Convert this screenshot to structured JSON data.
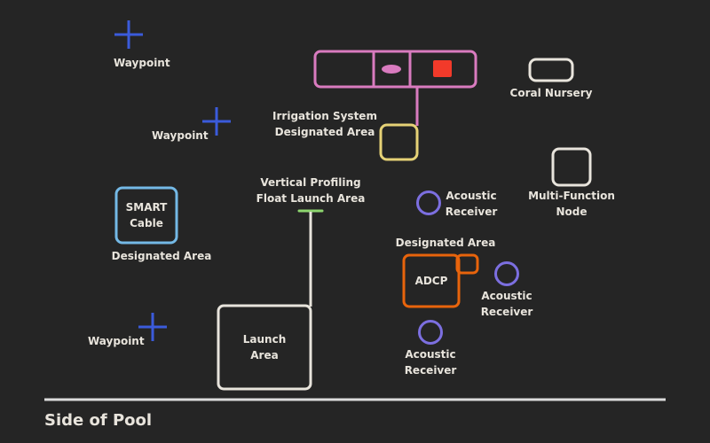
{
  "colors": {
    "background": "#252525",
    "text": "#e8e4dc",
    "waypoint": "#3b5bdb",
    "receiver": "#7c6fe0",
    "irrigation": "#d97bbf",
    "irrigation_dot": "#f23a2a",
    "irrigation_target": "#e6d276",
    "smart_cable": "#74b9e6",
    "adcp": "#e8640c",
    "neutral_box": "#e8e4dc",
    "float_marker": "#8ed66f",
    "pool_line": "#dcdcdc"
  },
  "labels": {
    "waypoint_1": "Waypoint",
    "waypoint_2": "Waypoint",
    "waypoint_3": "Waypoint",
    "irrigation_line1": "Irrigation System",
    "irrigation_line2": "Designated Area",
    "coral_nursery": "Coral Nursery",
    "smart_cable_line1": "SMART",
    "smart_cable_line2": "Cable",
    "smart_cable_area": "Designated Area",
    "float_line1": "Vertical Profiling",
    "float_line2": "Float Launch Area",
    "launch_line1": "Launch",
    "launch_line2": "Area",
    "receiver_1_line1": "Acoustic",
    "receiver_1_line2": "Receiver",
    "receiver_2_line1": "Acoustic",
    "receiver_2_line2": "Receiver",
    "receiver_3_line1": "Acoustic",
    "receiver_3_line2": "Receiver",
    "mfn_line1": "Multi-Function",
    "mfn_line2": "Node",
    "adcp_area": "Designated Area",
    "adcp": "ADCP",
    "pool_side": "Side of Pool"
  },
  "icons": {
    "waypoint": "plus-icon",
    "receiver": "circle-icon"
  }
}
